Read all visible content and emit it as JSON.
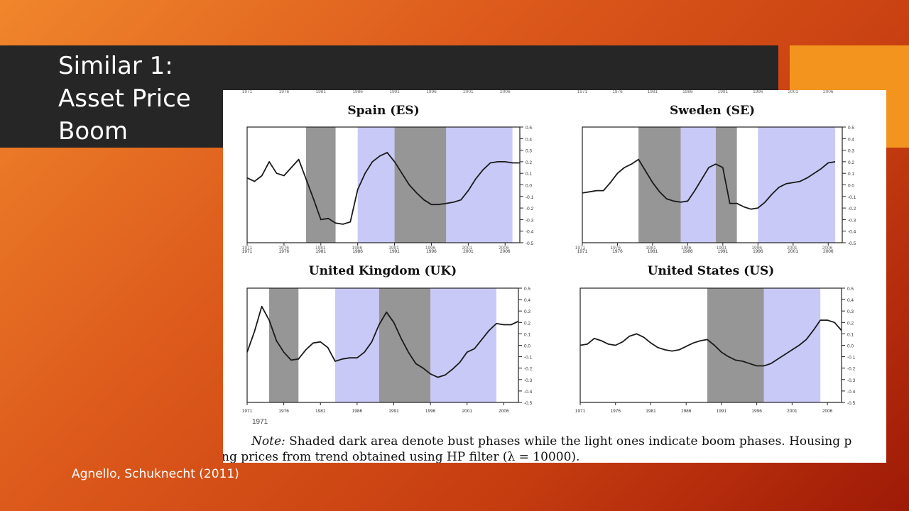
{
  "slide": {
    "title": "Similar 1: Asset Price Boom",
    "citation": "Agnello, Schuknecht (2011)"
  },
  "figure": {
    "small_label": "1971",
    "note_line1_prefix": "Note:",
    "note_line1_text": " Shaded dark area denote bust phases while the light ones indicate boom phases. Housing p",
    "note_line2": "ng prices from trend obtained using HP filter (λ = 10000)."
  },
  "colors": {
    "bust": "#969696",
    "boom": "#c9c9f7",
    "line": "#1a1a1a"
  },
  "chart_data": [
    {
      "type": "line",
      "title": "Spain (ES)",
      "x_ticks": [
        "1971",
        "1976",
        "1981",
        "1986",
        "1991",
        "1996",
        "2001",
        "2006"
      ],
      "y_ticks": [
        "0.5",
        "0.4",
        "0.3",
        "0.2",
        "0.1",
        "0.0",
        "-0.1",
        "-0.2",
        "-0.3",
        "-0.4",
        "-0.5"
      ],
      "xlim": [
        1971,
        2008
      ],
      "ylim": [
        -0.5,
        0.5
      ],
      "bust_phases": [
        [
          1979,
          1983
        ],
        [
          1991,
          1998
        ]
      ],
      "boom_phases": [
        [
          1986,
          1991
        ],
        [
          1998,
          2007
        ]
      ],
      "series": [
        {
          "x": [
            1971,
            1972,
            1973,
            1974,
            1975,
            1976,
            1977,
            1978,
            1979,
            1980,
            1981,
            1982,
            1983,
            1984,
            1985,
            1986,
            1987,
            1988,
            1989,
            1990,
            1991,
            1992,
            1993,
            1994,
            1995,
            1996,
            1997,
            1998,
            1999,
            2000,
            2001,
            2002,
            2003,
            2004,
            2005,
            2006,
            2007,
            2008
          ],
          "values": [
            0.06,
            0.03,
            0.08,
            0.2,
            0.1,
            0.08,
            0.15,
            0.22,
            0.05,
            -0.12,
            -0.3,
            -0.29,
            -0.33,
            -0.34,
            -0.32,
            -0.04,
            0.1,
            0.2,
            0.25,
            0.28,
            0.2,
            0.1,
            0.0,
            -0.07,
            -0.13,
            -0.17,
            -0.17,
            -0.16,
            -0.15,
            -0.13,
            -0.05,
            0.05,
            0.13,
            0.19,
            0.2,
            0.2,
            0.19,
            0.19
          ]
        }
      ]
    },
    {
      "type": "line",
      "title": "Sweden (SE)",
      "x_ticks": [
        "1971",
        "1976",
        "1981",
        "1986",
        "1991",
        "1996",
        "2001",
        "2006"
      ],
      "y_ticks": [
        "0.5",
        "0.4",
        "0.3",
        "0.2",
        "0.1",
        "0.0",
        "-0.1",
        "-0.2",
        "-0.3",
        "-0.4",
        "-0.5"
      ],
      "xlim": [
        1971,
        2008
      ],
      "ylim": [
        -0.5,
        0.5
      ],
      "bust_phases": [
        [
          1979,
          1985
        ],
        [
          1990,
          1993
        ]
      ],
      "boom_phases": [
        [
          1985,
          1990
        ],
        [
          1996,
          2007
        ]
      ],
      "series": [
        {
          "x": [
            1971,
            1972,
            1973,
            1974,
            1975,
            1976,
            1977,
            1978,
            1979,
            1980,
            1981,
            1982,
            1983,
            1984,
            1985,
            1986,
            1987,
            1988,
            1989,
            1990,
            1991,
            1992,
            1993,
            1994,
            1995,
            1996,
            1997,
            1998,
            1999,
            2000,
            2001,
            2002,
            2003,
            2004,
            2005,
            2006,
            2007
          ],
          "values": [
            -0.07,
            -0.06,
            -0.05,
            -0.05,
            0.02,
            0.1,
            0.15,
            0.18,
            0.22,
            0.12,
            0.02,
            -0.06,
            -0.12,
            -0.14,
            -0.15,
            -0.14,
            -0.05,
            0.05,
            0.15,
            0.18,
            0.15,
            -0.16,
            -0.16,
            -0.19,
            -0.21,
            -0.2,
            -0.15,
            -0.08,
            -0.02,
            0.01,
            0.02,
            0.03,
            0.06,
            0.1,
            0.14,
            0.19,
            0.2
          ]
        }
      ]
    },
    {
      "type": "line",
      "title": "United Kingdom (UK)",
      "x_ticks": [
        "1971",
        "1976",
        "1981",
        "1986",
        "1991",
        "1996",
        "2001",
        "2006"
      ],
      "y_ticks": [
        "0.5",
        "0.4",
        "0.3",
        "0.2",
        "0.1",
        "0.0",
        "-0.1",
        "-0.2",
        "-0.3",
        "-0.4",
        "-0.5"
      ],
      "xlim": [
        1971,
        2008
      ],
      "ylim": [
        -0.5,
        0.5
      ],
      "bust_phases": [
        [
          1974,
          1978
        ],
        [
          1989,
          1996
        ]
      ],
      "boom_phases": [
        [
          1983,
          1989
        ],
        [
          1996,
          2005
        ]
      ],
      "series": [
        {
          "x": [
            1971,
            1972,
            1973,
            1974,
            1975,
            1976,
            1977,
            1978,
            1979,
            1980,
            1981,
            1982,
            1983,
            1984,
            1985,
            1986,
            1987,
            1988,
            1989,
            1990,
            1991,
            1992,
            1993,
            1994,
            1995,
            1996,
            1997,
            1998,
            1999,
            2000,
            2001,
            2002,
            2003,
            2004,
            2005,
            2006,
            2007,
            2008
          ],
          "values": [
            -0.06,
            0.12,
            0.34,
            0.22,
            0.04,
            -0.06,
            -0.13,
            -0.12,
            -0.04,
            0.02,
            0.03,
            -0.02,
            -0.14,
            -0.12,
            -0.11,
            -0.11,
            -0.06,
            0.03,
            0.18,
            0.29,
            0.2,
            0.06,
            -0.06,
            -0.16,
            -0.2,
            -0.25,
            -0.28,
            -0.26,
            -0.21,
            -0.15,
            -0.06,
            -0.03,
            0.05,
            0.13,
            0.19,
            0.18,
            0.18,
            0.21
          ]
        }
      ]
    },
    {
      "type": "line",
      "title": "United States (US)",
      "x_ticks": [
        "1971",
        "1976",
        "1981",
        "1986",
        "1991",
        "1996",
        "2001",
        "2006"
      ],
      "y_ticks": [
        "0.5",
        "0.4",
        "0.3",
        "0.2",
        "0.1",
        "0.0",
        "-0.1",
        "-0.2",
        "-0.3",
        "-0.4",
        "-0.5"
      ],
      "xlim": [
        1971,
        2008
      ],
      "ylim": [
        -0.5,
        0.5
      ],
      "bust_phases": [
        [
          1989,
          1997
        ]
      ],
      "boom_phases": [
        [
          1997,
          2005
        ]
      ],
      "series": [
        {
          "x": [
            1971,
            1972,
            1973,
            1974,
            1975,
            1976,
            1977,
            1978,
            1979,
            1980,
            1981,
            1982,
            1983,
            1984,
            1985,
            1986,
            1987,
            1988,
            1989,
            1990,
            1991,
            1992,
            1993,
            1994,
            1995,
            1996,
            1997,
            1998,
            1999,
            2000,
            2001,
            2002,
            2003,
            2004,
            2005,
            2006,
            2007,
            2008
          ],
          "values": [
            0.0,
            0.01,
            0.06,
            0.04,
            0.01,
            0.0,
            0.03,
            0.08,
            0.1,
            0.07,
            0.02,
            -0.02,
            -0.04,
            -0.05,
            -0.04,
            -0.01,
            0.02,
            0.04,
            0.05,
            0.0,
            -0.06,
            -0.1,
            -0.13,
            -0.14,
            -0.16,
            -0.18,
            -0.18,
            -0.16,
            -0.12,
            -0.08,
            -0.04,
            0.0,
            0.05,
            0.13,
            0.22,
            0.22,
            0.2,
            0.13
          ]
        }
      ]
    }
  ]
}
